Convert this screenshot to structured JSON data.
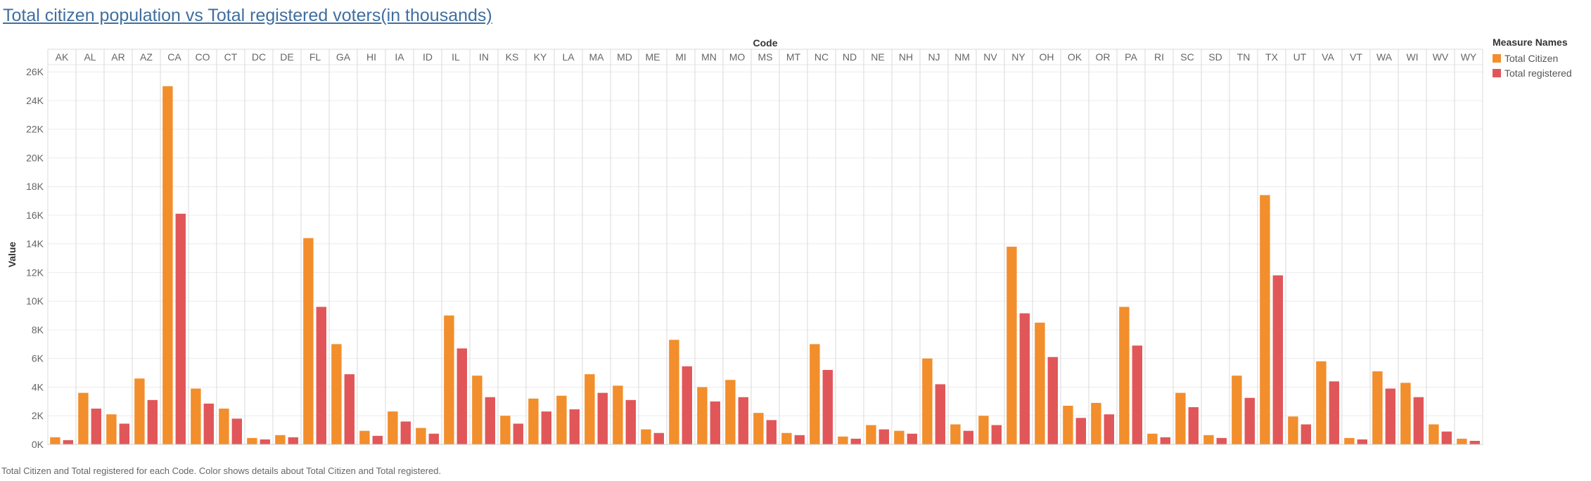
{
  "title": "Total citizen population vs Total registered voters(in thousands)",
  "caption": "Total Citizen and Total registered for each Code.  Color shows details about Total Citizen and Total registered.",
  "legend": {
    "title": "Measure Names",
    "items": [
      {
        "label": "Total Citizen",
        "color": "#f28e2b"
      },
      {
        "label": "Total registered",
        "color": "#e15759"
      }
    ]
  },
  "chart_data": {
    "type": "bar",
    "title": "Total citizen population vs Total registered voters(in thousands)",
    "xlabel": "Code",
    "ylabel": "Value",
    "ylim": [
      0,
      26500
    ],
    "yticks": [
      0,
      2000,
      4000,
      6000,
      8000,
      10000,
      12000,
      14000,
      16000,
      18000,
      20000,
      22000,
      24000,
      26000
    ],
    "ytick_labels": [
      "0K",
      "2K",
      "4K",
      "6K",
      "8K",
      "10K",
      "12K",
      "14K",
      "16K",
      "18K",
      "20K",
      "22K",
      "24K",
      "26K"
    ],
    "categories": [
      "AK",
      "AL",
      "AR",
      "AZ",
      "CA",
      "CO",
      "CT",
      "DC",
      "DE",
      "FL",
      "GA",
      "HI",
      "IA",
      "ID",
      "IL",
      "IN",
      "KS",
      "KY",
      "LA",
      "MA",
      "MD",
      "ME",
      "MI",
      "MN",
      "MO",
      "MS",
      "MT",
      "NC",
      "ND",
      "NE",
      "NH",
      "NJ",
      "NM",
      "NV",
      "NY",
      "OH",
      "OK",
      "OR",
      "PA",
      "RI",
      "SC",
      "SD",
      "TN",
      "TX",
      "UT",
      "VA",
      "VT",
      "WA",
      "WI",
      "WV",
      "WY"
    ],
    "series": [
      {
        "name": "Total Citizen",
        "color": "#f28e2b",
        "values": [
          500,
          3600,
          2100,
          4600,
          25000,
          3900,
          2500,
          450,
          650,
          14400,
          7000,
          950,
          2300,
          1150,
          9000,
          4800,
          2000,
          3200,
          3400,
          4900,
          4100,
          1050,
          7300,
          4000,
          4500,
          2200,
          800,
          7000,
          550,
          1350,
          950,
          6000,
          1400,
          2000,
          13800,
          8500,
          2700,
          2900,
          9600,
          750,
          3600,
          650,
          4800,
          17400,
          1950,
          5800,
          450,
          5100,
          4300,
          1400,
          400
        ]
      },
      {
        "name": "Total registered",
        "color": "#e15759",
        "values": [
          300,
          2500,
          1450,
          3100,
          16100,
          2850,
          1800,
          350,
          500,
          9600,
          4900,
          600,
          1600,
          750,
          6700,
          3300,
          1450,
          2300,
          2450,
          3600,
          3100,
          800,
          5450,
          3000,
          3300,
          1700,
          650,
          5200,
          400,
          1050,
          750,
          4200,
          950,
          1350,
          9150,
          6100,
          1850,
          2100,
          6900,
          500,
          2600,
          450,
          3250,
          11800,
          1400,
          4400,
          350,
          3900,
          3300,
          900,
          250
        ]
      }
    ]
  }
}
